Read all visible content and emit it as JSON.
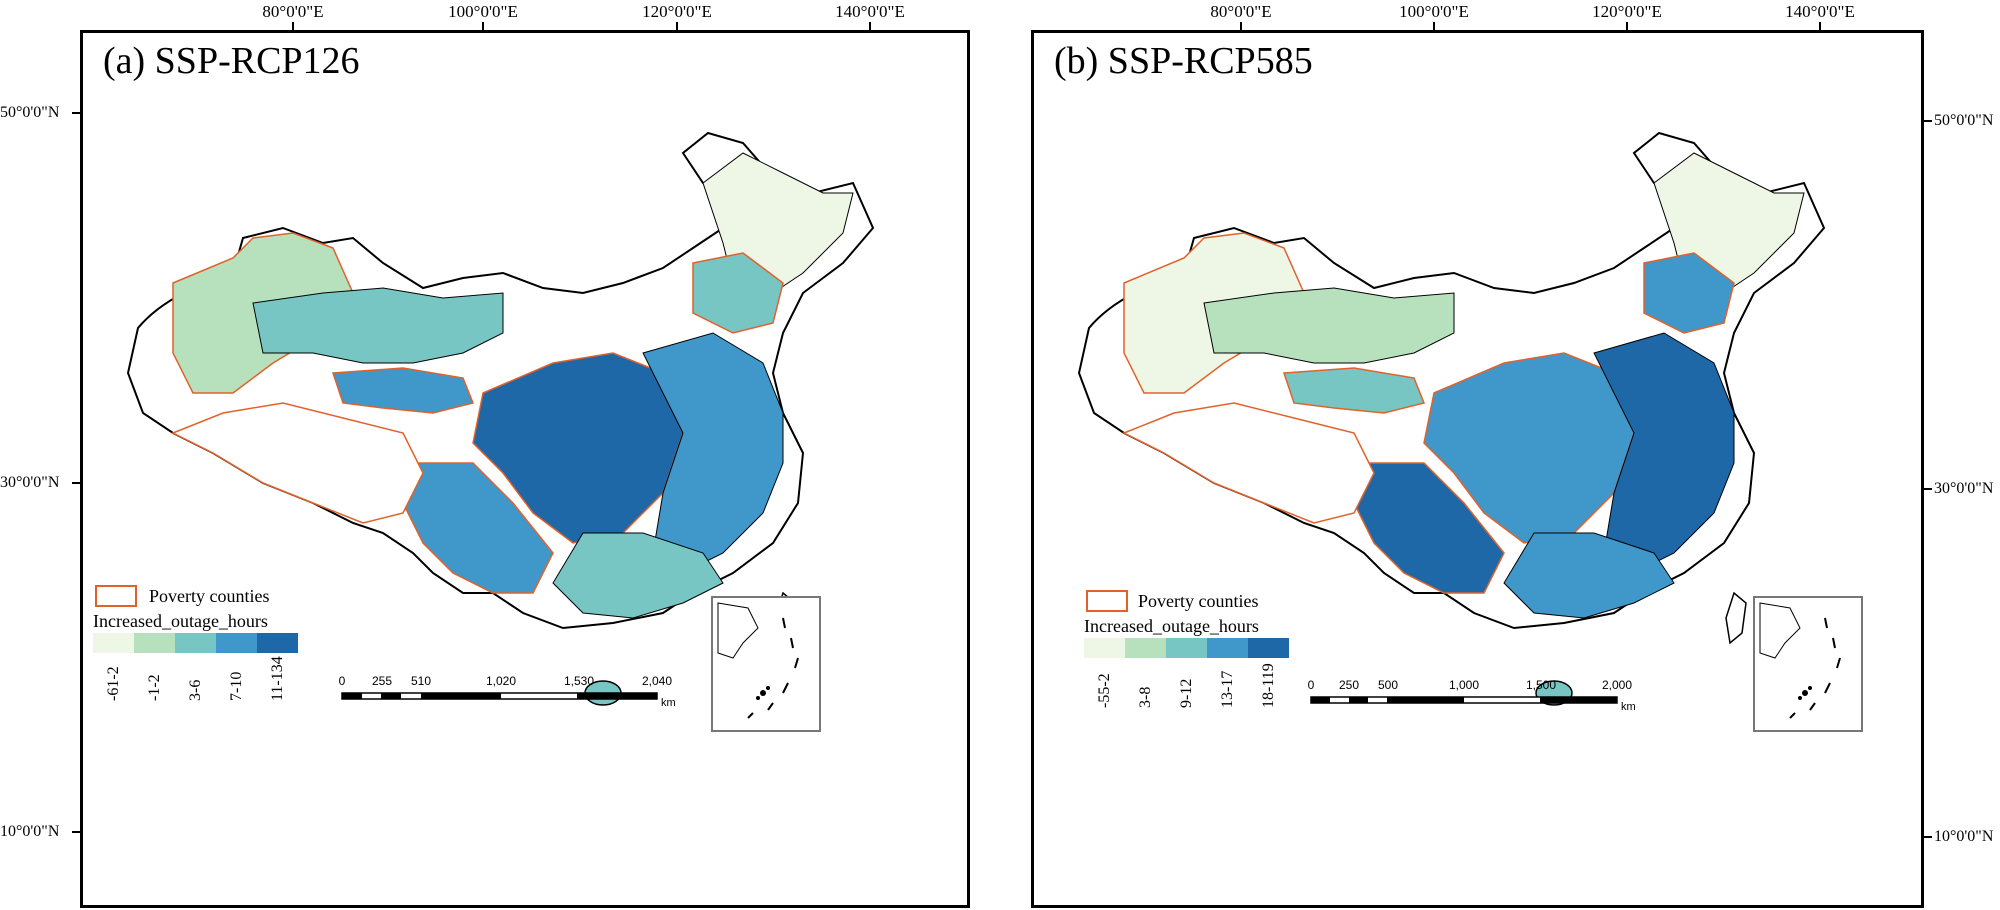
{
  "longitude_labels": [
    "80°0'0\"E",
    "100°0'0\"E",
    "120°0'0\"E",
    "140°0'0\"E"
  ],
  "latitude_labels": [
    "50°0'0\"N",
    "30°0'0\"N",
    "10°0'0\"N"
  ],
  "panels": [
    {
      "title": "(a) SSP-RCP126",
      "legend": {
        "poverty_label": "Poverty counties",
        "title": "Increased_outage_hours",
        "classes": [
          {
            "label": "-61-2",
            "color": "#eef7e6"
          },
          {
            "label": "-1-2",
            "color": "#b7e1bd"
          },
          {
            "label": "3-6",
            "color": "#77c6c4"
          },
          {
            "label": "7-10",
            "color": "#3f98c9"
          },
          {
            "label": "11-134",
            "color": "#1f68a8"
          }
        ]
      },
      "scale_bar": {
        "labels": [
          "0",
          "255",
          "510",
          "1,020",
          "1,530",
          "2,040"
        ],
        "unit": "km"
      }
    },
    {
      "title": "(b) SSP-RCP585",
      "legend": {
        "poverty_label": "Poverty counties",
        "title": "Increased_outage_hours",
        "classes": [
          {
            "label": "-55-2",
            "color": "#eef7e6"
          },
          {
            "label": "3-8",
            "color": "#b7e1bd"
          },
          {
            "label": "9-12",
            "color": "#77c6c4"
          },
          {
            "label": "13-17",
            "color": "#3f98c9"
          },
          {
            "label": "18-119",
            "color": "#1f68a8"
          }
        ]
      },
      "scale_bar": {
        "labels": [
          "0",
          "250",
          "500",
          "1,000",
          "1,500",
          "2,000"
        ],
        "unit": "km"
      }
    }
  ],
  "colors": {
    "poverty_border": "#e0622a",
    "frame": "#000000"
  }
}
